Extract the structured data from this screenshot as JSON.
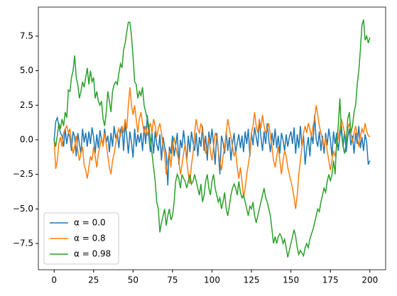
{
  "chart_data": {
    "type": "line",
    "x": [
      0,
      1,
      2,
      3,
      4,
      5,
      6,
      7,
      8,
      9,
      10,
      11,
      12,
      13,
      14,
      15,
      16,
      17,
      18,
      19,
      20,
      21,
      22,
      23,
      24,
      25,
      26,
      27,
      28,
      29,
      30,
      31,
      32,
      33,
      34,
      35,
      36,
      37,
      38,
      39,
      40,
      41,
      42,
      43,
      44,
      45,
      46,
      47,
      48,
      49,
      50,
      51,
      52,
      53,
      54,
      55,
      56,
      57,
      58,
      59,
      60,
      61,
      62,
      63,
      64,
      65,
      66,
      67,
      68,
      69,
      70,
      71,
      72,
      73,
      74,
      75,
      76,
      77,
      78,
      79,
      80,
      81,
      82,
      83,
      84,
      85,
      86,
      87,
      88,
      89,
      90,
      91,
      92,
      93,
      94,
      95,
      96,
      97,
      98,
      99,
      100,
      101,
      102,
      103,
      104,
      105,
      106,
      107,
      108,
      109,
      110,
      111,
      112,
      113,
      114,
      115,
      116,
      117,
      118,
      119,
      120,
      121,
      122,
      123,
      124,
      125,
      126,
      127,
      128,
      129,
      130,
      131,
      132,
      133,
      134,
      135,
      136,
      137,
      138,
      139,
      140,
      141,
      142,
      143,
      144,
      145,
      146,
      147,
      148,
      149,
      150,
      151,
      152,
      153,
      154,
      155,
      156,
      157,
      158,
      159,
      160,
      161,
      162,
      163,
      164,
      165,
      166,
      167,
      168,
      169,
      170,
      171,
      172,
      173,
      174,
      175,
      176,
      177,
      178,
      179,
      180,
      181,
      182,
      183,
      184,
      185,
      186,
      187,
      188,
      189,
      190,
      191,
      192,
      193,
      194,
      195,
      196,
      197,
      198,
      199,
      200
    ],
    "series": [
      {
        "name": "α = 0.0",
        "color": "#1f77b4",
        "values": [
          0.0,
          1.3,
          1.6,
          1.0,
          0.5,
          0.3,
          -0.5,
          0.8,
          -0.3,
          0.5,
          0.2,
          -0.8,
          0.6,
          0.2,
          -1.2,
          0.5,
          -0.3,
          -1.0,
          0.8,
          -0.2,
          0.5,
          -0.5,
          0.6,
          -0.3,
          0.9,
          0.2,
          -1.0,
          0.4,
          -0.6,
          0.7,
          0.0,
          -0.4,
          0.8,
          -0.2,
          0.3,
          -0.9,
          0.5,
          -0.5,
          1.0,
          0.1,
          0.5,
          -0.6,
          0.7,
          1.0,
          -0.8,
          1.2,
          0.3,
          -1.0,
          0.6,
          -0.2,
          -1.3,
          0.8,
          -0.5,
          0.4,
          -0.2,
          0.5,
          -0.8,
          1.0,
          -0.3,
          1.8,
          0.2,
          -0.9,
          0.5,
          -1.0,
          0.6,
          -0.3,
          -0.8,
          0.4,
          -1.5,
          0.2,
          -0.5,
          -1.0,
          -3.3,
          -0.5,
          -1.0,
          0.3,
          -1.2,
          -0.4,
          0.5,
          -1.8,
          0.0,
          -0.6,
          0.7,
          -0.4,
          -1.5,
          0.3,
          -0.9,
          0.6,
          -0.2,
          -0.8,
          0.5,
          -1.2,
          0.2,
          -0.5,
          1.0,
          -0.8,
          0.3,
          -1.5,
          0.6,
          -0.3,
          0.8,
          -0.4,
          -1.8,
          0.5,
          -0.7,
          -2.5,
          0.3,
          -0.2,
          -1.0,
          0.6,
          -0.8,
          0.2,
          -1.5,
          -0.3,
          0.5,
          -1.0,
          -0.2,
          0.4,
          -0.6,
          0.3,
          -0.9,
          0.6,
          -0.3,
          0.8,
          -1.2,
          0.5,
          -0.4,
          0.9,
          0.2,
          -0.5,
          1.5,
          0.2,
          -0.8,
          0.6,
          -0.3,
          1.2,
          0.0,
          -0.9,
          0.5,
          -0.4,
          0.8,
          -0.6,
          0.3,
          -1.0,
          0.5,
          0.0,
          -0.8,
          0.4,
          -0.5,
          0.2,
          0.6,
          -0.3,
          0.9,
          -1.0,
          0.4,
          -0.6,
          1.0,
          -0.5,
          0.3,
          -1.8,
          -0.6,
          0.2,
          -1.2,
          0.4,
          -0.3,
          1.8,
          0.0,
          -0.5,
          0.6,
          -0.8,
          0.3,
          -1.0,
          0.5,
          -0.4,
          0.8,
          0.0,
          -1.2,
          0.6,
          -0.3,
          0.5,
          -0.8,
          0.3,
          1.0,
          -0.5,
          0.6,
          -0.9,
          0.2,
          0.8,
          -0.4,
          0.3,
          -1.0,
          0.5,
          -0.3,
          1.0,
          -0.6,
          0.2,
          -0.8,
          0.4,
          -0.2,
          -1.8,
          -1.5
        ]
      },
      {
        "name": "α = 0.8",
        "color": "#ff7f0e",
        "values": [
          0.0,
          -2.1,
          -1.5,
          -0.3,
          0.2,
          -0.5,
          0.5,
          0.8,
          1.0,
          0.5,
          0.8,
          -0.2,
          -1.0,
          -0.5,
          0.3,
          -0.8,
          -1.5,
          -1.0,
          -0.5,
          -1.8,
          -2.2,
          -2.8,
          -2.0,
          -1.2,
          -1.5,
          -0.5,
          -1.2,
          -2.0,
          -1.0,
          -0.5,
          0.2,
          -0.5,
          0.5,
          -0.3,
          -1.2,
          -2.0,
          -2.5,
          -1.5,
          -1.0,
          -0.3,
          0.5,
          0.8,
          0.2,
          1.0,
          0.5,
          1.5,
          0.8,
          2.5,
          3.8,
          2.5,
          1.8,
          2.5,
          1.5,
          0.5,
          1.5,
          2.0,
          1.2,
          0.5,
          1.0,
          0.3,
          0.8,
          1.2,
          0.5,
          1.5,
          1.0,
          0.2,
          0.8,
          1.2,
          0.5,
          -0.5,
          -1.0,
          -2.5,
          -1.5,
          -0.8,
          -2.0,
          -0.5,
          0.2,
          -0.5,
          -1.0,
          -1.5,
          -2.5,
          -1.8,
          -1.0,
          -0.3,
          -1.5,
          -2.5,
          -3.2,
          -1.8,
          -1.0,
          0.5,
          1.5,
          0.8,
          0.5,
          1.2,
          0.8,
          0.0,
          -1.0,
          -0.5,
          0.2,
          -0.8,
          -1.5,
          -0.5,
          0.5,
          0.2,
          -0.8,
          -1.5,
          -2.2,
          -1.2,
          -0.5,
          0.5,
          1.5,
          0.8,
          0.2,
          -0.5,
          -1.2,
          -0.8,
          -2.0,
          -2.8,
          -2.0,
          -3.0,
          -4.2,
          -3.5,
          -2.5,
          -1.8,
          -1.0,
          0.5,
          1.0,
          2.0,
          1.0,
          0.5,
          1.5,
          0.8,
          1.8,
          1.0,
          0.5,
          0.8,
          1.2,
          0.3,
          -0.5,
          -1.5,
          -2.0,
          -1.2,
          -0.5,
          -1.5,
          -2.5,
          -1.5,
          -0.8,
          -1.2,
          -2.0,
          -2.5,
          -3.0,
          -3.5,
          -4.2,
          -5.0,
          -4.0,
          -2.5,
          -1.5,
          -0.5,
          0.5,
          1.0,
          0.5,
          1.2,
          0.8,
          0.2,
          1.0,
          1.5,
          2.5,
          1.8,
          1.0,
          0.5,
          0.0,
          -0.5,
          0.2,
          -0.8,
          -1.5,
          -2.2,
          -1.5,
          -0.8,
          -1.2,
          -0.5,
          0.2,
          0.8,
          1.5,
          1.0,
          0.5,
          0.0,
          0.8,
          1.2,
          0.5,
          -0.2,
          0.5,
          1.0,
          0.3,
          -0.5,
          0.2,
          0.8,
          0.5,
          1.2,
          0.6,
          0.3,
          0.2
        ]
      },
      {
        "name": "α = 0.98",
        "color": "#2ca02c",
        "values": [
          0,
          -0.5,
          0.3,
          1.2,
          0.8,
          1.5,
          1.0,
          2.0,
          1.6,
          3.6,
          3.5,
          4.5,
          5.0,
          6.1,
          4.5,
          4.0,
          3.0,
          3.5,
          4.2,
          3.8,
          4.5,
          5.2,
          4.0,
          5.0,
          4.2,
          4.5,
          3.0,
          3.5,
          2.8,
          2.5,
          2.8,
          1.5,
          1.0,
          2.0,
          3.5,
          2.8,
          2.0,
          3.5,
          4.0,
          4.2,
          4.0,
          4.8,
          5.5,
          5.2,
          6.5,
          7.0,
          7.8,
          8.5,
          8.5,
          7.5,
          6.0,
          4.2,
          4.0,
          3.0,
          3.5,
          3.2,
          3.8,
          2.5,
          2.0,
          1.5,
          1.0,
          0.0,
          -1.0,
          -2.0,
          -3.0,
          -4.5,
          -5.0,
          -6.7,
          -6.0,
          -5.5,
          -5.0,
          -6.2,
          -5.5,
          -5.0,
          -5.8,
          -5.5,
          -4.5,
          -3.0,
          -2.5,
          -2.8,
          -3.5,
          -2.5,
          -2.8,
          -3.0,
          -3.5,
          -3.0,
          -2.5,
          -3.2,
          -3.0,
          -2.5,
          -3.0,
          -3.5,
          -4.0,
          -3.2,
          -4.5,
          -4.0,
          -3.0,
          -2.5,
          -3.5,
          -4.0,
          -3.0,
          -2.5,
          -3.5,
          -4.0,
          -4.5,
          -4.2,
          -5.0,
          -4.5,
          -3.8,
          -5.0,
          -5.5,
          -4.8,
          -4.0,
          -3.5,
          -3.2,
          -3.5,
          -4.0,
          -3.0,
          -3.8,
          -4.2,
          -4.0,
          -4.5,
          -5.0,
          -5.5,
          -4.8,
          -5.0,
          -4.5,
          -5.5,
          -6.0,
          -5.5,
          -5.0,
          -4.5,
          -4.0,
          -3.5,
          -4.2,
          -4.5,
          -5.0,
          -5.5,
          -6.5,
          -7.5,
          -7.0,
          -7.5,
          -7.0,
          -6.8,
          -7.0,
          -7.5,
          -7.2,
          -7.8,
          -8.5,
          -8.0,
          -7.5,
          -7.0,
          -6.5,
          -7.0,
          -7.8,
          -8.3,
          -8.0,
          -8.2,
          -8.4,
          -7.8,
          -7.5,
          -7.8,
          -7.2,
          -6.8,
          -6.5,
          -6.0,
          -5.5,
          -5.0,
          -5.2,
          -4.5,
          -4.0,
          -3.5,
          -3.8,
          -3.0,
          -2.5,
          -3.0,
          -2.5,
          -1.5,
          -2.5,
          0.0,
          1.0,
          3.0,
          0.5,
          -0.5,
          -1.0,
          -0.2,
          1.5,
          2.0,
          0.5,
          1.0,
          2.0,
          2.5,
          4.0,
          5.0,
          6.5,
          8.3,
          8.7,
          7.2,
          7.5,
          7.0,
          7.4
        ]
      }
    ],
    "xlim": [
      -10,
      210
    ],
    "xticks": [
      0,
      25,
      50,
      75,
      100,
      125,
      150,
      175,
      200
    ],
    "ylim": [
      -9.4,
      9.6
    ],
    "yticks": [
      {
        "value": -7.5,
        "label": "−7.5"
      },
      {
        "value": -5,
        "label": "−5.0"
      },
      {
        "value": -2.5,
        "label": "−2.5"
      },
      {
        "value": 0,
        "label": "0.0"
      },
      2.5,
      {
        "value": 5,
        "label": "5.0"
      },
      7.5
    ],
    "legend": "lower left"
  }
}
